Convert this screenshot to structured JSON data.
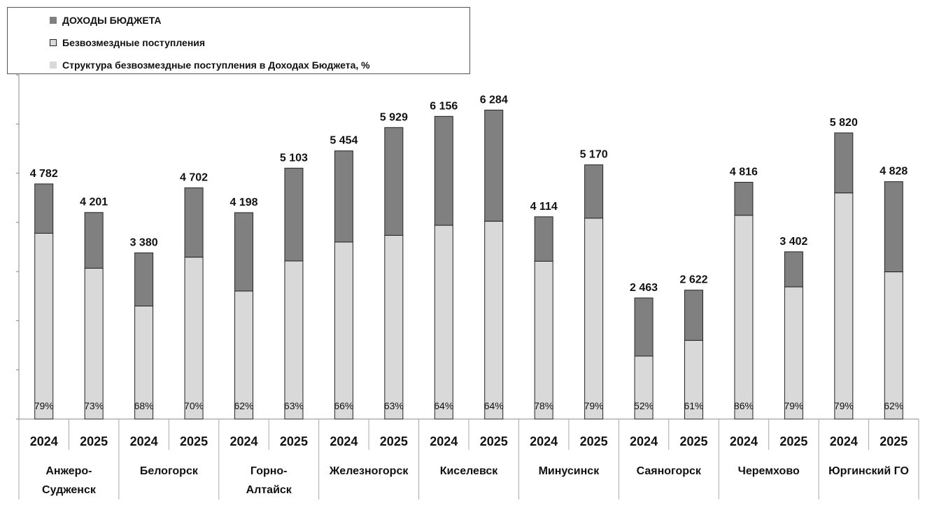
{
  "chart_data": {
    "type": "bar",
    "stacked": true,
    "title": "",
    "xlabel": "",
    "ylabel": "",
    "ylim": [
      0,
      7000
    ],
    "grid": false,
    "legend_position": "top-left",
    "legend": [
      "ДОХОДЫ БЮДЖЕТА",
      "Безвозмездные поступления",
      "Структура  безвозмездные поступления в Доходах Бюджета, %"
    ],
    "colors": {
      "revenue": "#808080",
      "grants": "#d9d9d9"
    },
    "groups": [
      {
        "name": "Анжеро-\nСудженск",
        "years": [
          "2024",
          "2025"
        ],
        "totals": [
          4782,
          4201
        ],
        "total_labels": [
          "4 782",
          "4 201"
        ],
        "shares": [
          "79%",
          "73%"
        ]
      },
      {
        "name": "Белогорск",
        "years": [
          "2024",
          "2025"
        ],
        "totals": [
          3380,
          4702
        ],
        "total_labels": [
          "3 380",
          "4 702"
        ],
        "shares": [
          "68%",
          "70%"
        ]
      },
      {
        "name": "Горно-\nАлтайск",
        "years": [
          "2024",
          "2025"
        ],
        "totals": [
          4198,
          5103
        ],
        "total_labels": [
          "4 198",
          "5 103"
        ],
        "shares": [
          "62%",
          "63%"
        ]
      },
      {
        "name": "Железногорск",
        "years": [
          "2024",
          "2025"
        ],
        "totals": [
          5454,
          5929
        ],
        "total_labels": [
          "5 454",
          "5 929"
        ],
        "shares": [
          "66%",
          "63%"
        ]
      },
      {
        "name": "Киселевск",
        "years": [
          "2024",
          "2025"
        ],
        "totals": [
          6156,
          6284
        ],
        "total_labels": [
          "6 156",
          "6 284"
        ],
        "shares": [
          "64%",
          "64%"
        ]
      },
      {
        "name": "Минусинск",
        "years": [
          "2024",
          "2025"
        ],
        "totals": [
          4114,
          5170
        ],
        "total_labels": [
          "4 114",
          "5 170"
        ],
        "shares": [
          "78%",
          "79%"
        ]
      },
      {
        "name": "Саяногорск",
        "years": [
          "2024",
          "2025"
        ],
        "totals": [
          2463,
          2622
        ],
        "total_labels": [
          "2 463",
          "2 622"
        ],
        "shares": [
          "52%",
          "61%"
        ]
      },
      {
        "name": "Черемхово",
        "years": [
          "2024",
          "2025"
        ],
        "totals": [
          4816,
          3402
        ],
        "total_labels": [
          "4 816",
          "3 402"
        ],
        "shares": [
          "86%",
          "79%"
        ]
      },
      {
        "name": "Юргинский ГО",
        "years": [
          "2024",
          "2025"
        ],
        "totals": [
          5820,
          4828
        ],
        "total_labels": [
          "5 820",
          "4 828"
        ],
        "shares": [
          "79%",
          "62%"
        ]
      }
    ]
  }
}
